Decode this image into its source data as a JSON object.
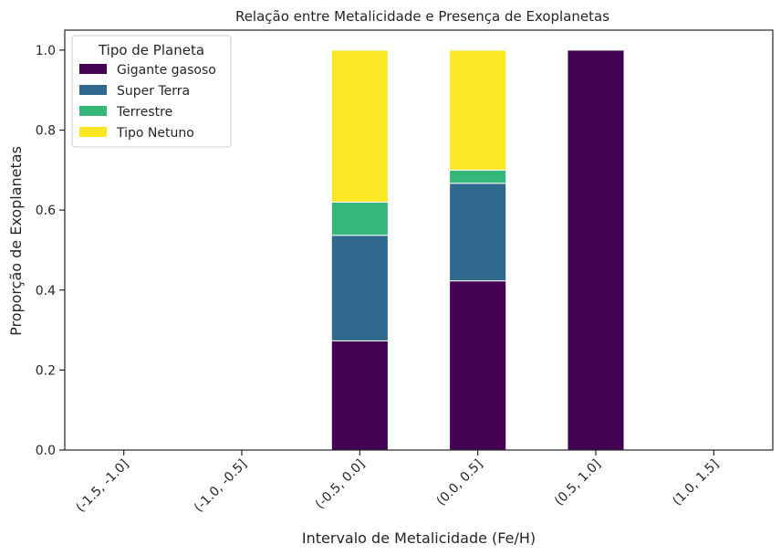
{
  "chart_data": {
    "type": "bar",
    "stacked": true,
    "title": "Relação entre Metalicidade e Presença de Exoplanetas",
    "xlabel": "Intervalo de Metalicidade (Fe/H)",
    "ylabel": "Proporção de Exoplanetas",
    "ylim": [
      0,
      1.05
    ],
    "yticks": [
      "0.0",
      "0.2",
      "0.4",
      "0.6",
      "0.8",
      "1.0"
    ],
    "categories": [
      "(-1.5, -1.0]",
      "(-1.0, -0.5]",
      "(-0.5, 0.0]",
      "(0.0, 0.5]",
      "(0.5, 1.0]",
      "(1.0, 1.5]"
    ],
    "series": [
      {
        "name": "Gigante gasoso",
        "color": "#440154",
        "values": [
          0,
          0,
          0.273,
          0.423,
          1.0,
          0
        ]
      },
      {
        "name": "Super Terra",
        "color": "#31688e",
        "values": [
          0,
          0,
          0.264,
          0.244,
          0,
          0
        ]
      },
      {
        "name": "Terrestre",
        "color": "#35b779",
        "values": [
          0,
          0,
          0.083,
          0.033,
          0,
          0
        ]
      },
      {
        "name": "Tipo Netuno",
        "color": "#fde725",
        "values": [
          0,
          0,
          0.38,
          0.3,
          0,
          0
        ]
      }
    ],
    "legend": {
      "title": "Tipo de Planeta",
      "position": "top-left"
    },
    "grid": false
  }
}
